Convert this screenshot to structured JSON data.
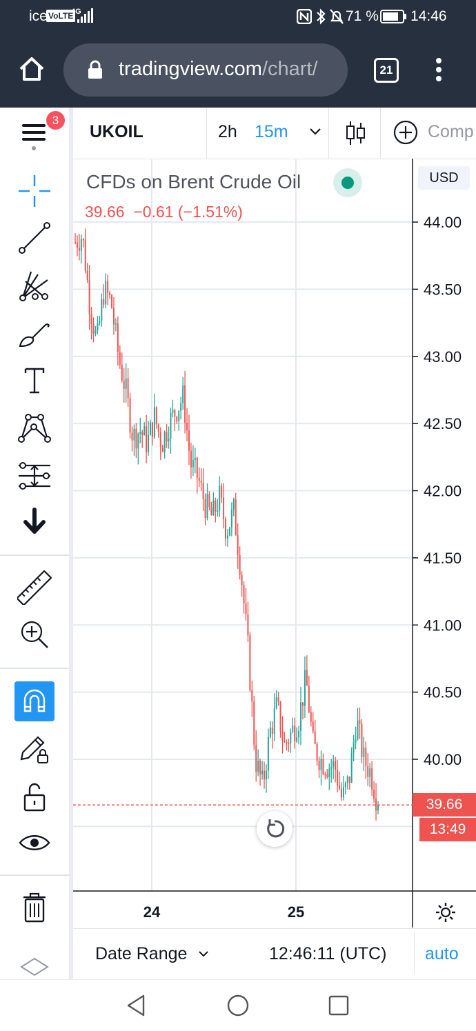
{
  "status_bar": {
    "carrier": "ice",
    "volte": "VoLTE",
    "network": "4G",
    "battery_percent": "71 %",
    "time": "14:46"
  },
  "browser": {
    "url_main": "tradingview.com",
    "url_path": "/chart/",
    "tab_count": "21"
  },
  "toolbar": {
    "menu_badge": "3",
    "symbol": "UKOIL",
    "interval_2h": "2h",
    "interval_15m": "15m",
    "compare_label": "Comp"
  },
  "chart_header": {
    "title": "CFDs on Brent Crude Oil",
    "price": "39.66",
    "change": "−0.61 (−1.51%)",
    "currency": "USD"
  },
  "price_labels": {
    "last_price": "39.66",
    "countdown": "13:49"
  },
  "bottom_bar": {
    "date_range": "Date Range",
    "clock": "12:46:11 (UTC)",
    "auto": "auto"
  },
  "colors": {
    "up": "#26a69a",
    "down": "#ef5350",
    "accent": "#2196f3",
    "status_bg": "#27303f"
  },
  "chart_data": {
    "type": "candlestick",
    "x_ticks": [
      "24",
      "25"
    ],
    "y_ticks": [
      44.0,
      43.5,
      43.0,
      42.5,
      42.0,
      41.5,
      41.0,
      40.5,
      40.0
    ],
    "y_tick_labels": [
      "44.00",
      "43.50",
      "43.00",
      "42.50",
      "42.00",
      "41.50",
      "41.00",
      "40.50",
      "40.00"
    ],
    "ylim": [
      38.6,
      44.35
    ],
    "last_price_line": 39.66,
    "close_path": [
      43.85,
      43.9,
      43.4,
      43.1,
      43.5,
      43.4,
      43.0,
      42.75,
      42.4,
      42.45,
      42.35,
      42.55,
      42.35,
      42.5,
      42.6,
      42.7,
      42.2,
      42.1,
      41.9,
      41.8,
      41.95,
      41.7,
      41.85,
      41.4,
      40.8,
      40.0,
      39.8,
      40.2,
      40.4,
      40.1,
      40.2,
      40.3,
      40.6,
      40.1,
      40.0,
      39.95,
      39.95,
      39.7,
      39.85,
      40.3,
      40.0,
      39.9,
      39.66
    ],
    "candle_count": 150
  }
}
